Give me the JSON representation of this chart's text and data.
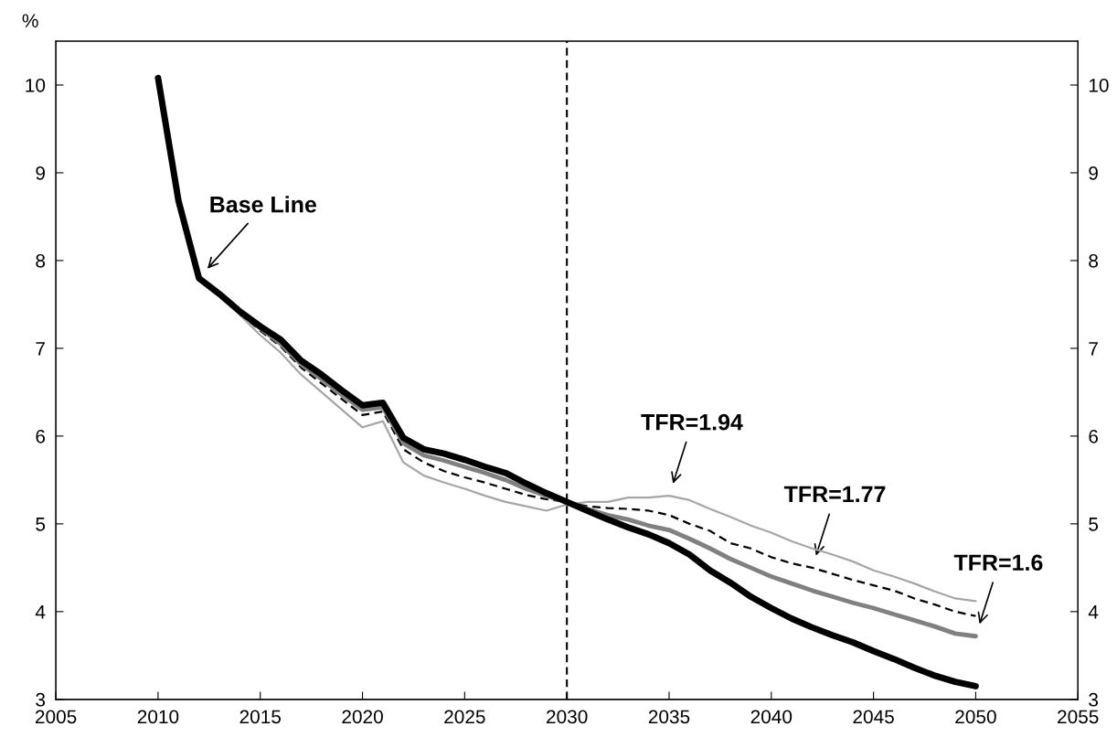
{
  "chart_data": {
    "type": "line",
    "ylabel": "%",
    "xlim": [
      2005,
      2055
    ],
    "xticks": [
      2005,
      2010,
      2015,
      2020,
      2025,
      2030,
      2035,
      2040,
      2045,
      2050,
      2055
    ],
    "ylim": [
      3,
      10.5
    ],
    "yticks": [
      3,
      4,
      5,
      6,
      7,
      8,
      9,
      10
    ],
    "y2lim": [
      3,
      10.5
    ],
    "y2ticks": [
      3,
      4,
      5,
      6,
      7,
      8,
      9,
      10
    ],
    "grid": false,
    "legend": false,
    "marker": "none",
    "series": [
      {
        "color": "#000000",
        "line_style": "solid",
        "x": [
          2010,
          2011,
          2012,
          2013,
          2014,
          2015,
          2016,
          2017,
          2018,
          2019,
          2020,
          2021,
          2022,
          2023,
          2024,
          2025,
          2026,
          2027,
          2028,
          2029,
          2030,
          2031,
          2032,
          2033,
          2034,
          2035,
          2036,
          2037,
          2038,
          2039,
          2040,
          2041,
          2042,
          2043,
          2044,
          2045,
          2046,
          2047,
          2048,
          2049,
          2050
        ],
        "values": [
          10.08,
          8.68,
          7.8,
          7.62,
          7.42,
          7.25,
          7.1,
          6.86,
          6.7,
          6.52,
          6.35,
          6.38,
          5.98,
          5.85,
          5.8,
          5.73,
          5.65,
          5.58,
          5.46,
          5.35,
          5.25,
          5.15,
          5.05,
          4.96,
          4.88,
          4.78,
          4.65,
          4.47,
          4.33,
          4.17,
          4.04,
          3.92,
          3.82,
          3.73,
          3.65,
          3.55,
          3.46,
          3.36,
          3.27,
          3.2,
          3.15
        ]
      },
      {
        "color": "#808080",
        "line_style": "solid",
        "x": [
          2014,
          2015,
          2016,
          2017,
          2018,
          2019,
          2020,
          2021,
          2022,
          2023,
          2024,
          2025,
          2026,
          2027,
          2028,
          2029,
          2030,
          2031,
          2032,
          2033,
          2034,
          2035,
          2036,
          2037,
          2038,
          2039,
          2040,
          2041,
          2042,
          2043,
          2044,
          2045,
          2046,
          2047,
          2048,
          2049,
          2050
        ],
        "values": [
          7.42,
          7.23,
          7.05,
          6.82,
          6.65,
          6.47,
          6.3,
          6.33,
          5.92,
          5.78,
          5.72,
          5.65,
          5.58,
          5.5,
          5.4,
          5.32,
          5.25,
          5.17,
          5.1,
          5.05,
          4.98,
          4.93,
          4.83,
          4.72,
          4.6,
          4.5,
          4.4,
          4.32,
          4.24,
          4.17,
          4.1,
          4.04,
          3.97,
          3.9,
          3.83,
          3.75,
          3.72
        ]
      },
      {
        "color": "#000000",
        "line_style": "dashed",
        "x": [
          2014,
          2015,
          2016,
          2017,
          2018,
          2019,
          2020,
          2021,
          2022,
          2023,
          2024,
          2025,
          2026,
          2027,
          2028,
          2029,
          2030,
          2031,
          2032,
          2033,
          2034,
          2035,
          2036,
          2037,
          2038,
          2039,
          2040,
          2041,
          2042,
          2043,
          2044,
          2045,
          2046,
          2047,
          2048,
          2049,
          2050
        ],
        "values": [
          7.4,
          7.2,
          7.02,
          6.78,
          6.6,
          6.42,
          6.24,
          6.28,
          5.85,
          5.7,
          5.6,
          5.53,
          5.47,
          5.4,
          5.33,
          5.28,
          5.25,
          5.2,
          5.18,
          5.17,
          5.15,
          5.1,
          5.0,
          4.92,
          4.78,
          4.72,
          4.62,
          4.55,
          4.5,
          4.43,
          4.36,
          4.3,
          4.24,
          4.15,
          4.08,
          4.0,
          3.95
        ]
      },
      {
        "color": "#a6a6a6",
        "line_style": "solid",
        "x": [
          2014,
          2015,
          2016,
          2017,
          2018,
          2019,
          2020,
          2021,
          2022,
          2023,
          2024,
          2025,
          2026,
          2027,
          2028,
          2029,
          2030,
          2031,
          2032,
          2033,
          2034,
          2035,
          2036,
          2037,
          2038,
          2039,
          2040,
          2041,
          2042,
          2043,
          2044,
          2045,
          2046,
          2047,
          2048,
          2049,
          2050
        ],
        "values": [
          7.38,
          7.15,
          6.95,
          6.7,
          6.5,
          6.3,
          6.1,
          6.17,
          5.7,
          5.55,
          5.47,
          5.4,
          5.32,
          5.25,
          5.2,
          5.15,
          5.22,
          5.25,
          5.25,
          5.3,
          5.3,
          5.32,
          5.27,
          5.17,
          5.08,
          4.98,
          4.9,
          4.8,
          4.72,
          4.65,
          4.57,
          4.47,
          4.4,
          4.32,
          4.23,
          4.15,
          4.12
        ]
      }
    ],
    "ref_lines": [
      {
        "axis": "x",
        "value": 2030,
        "color": "#000000",
        "line_style": "dashed"
      }
    ],
    "annotations": [
      {
        "text": "Base Line",
        "x": 2012,
        "y": 7.8
      },
      {
        "text": "TFR=1.94",
        "x": 2035,
        "y": 5.32
      },
      {
        "text": "TFR=1.77",
        "x": 2042,
        "y": 4.5
      },
      {
        "text": "TFR=1.6",
        "x": 2050,
        "y": 3.72
      }
    ]
  }
}
